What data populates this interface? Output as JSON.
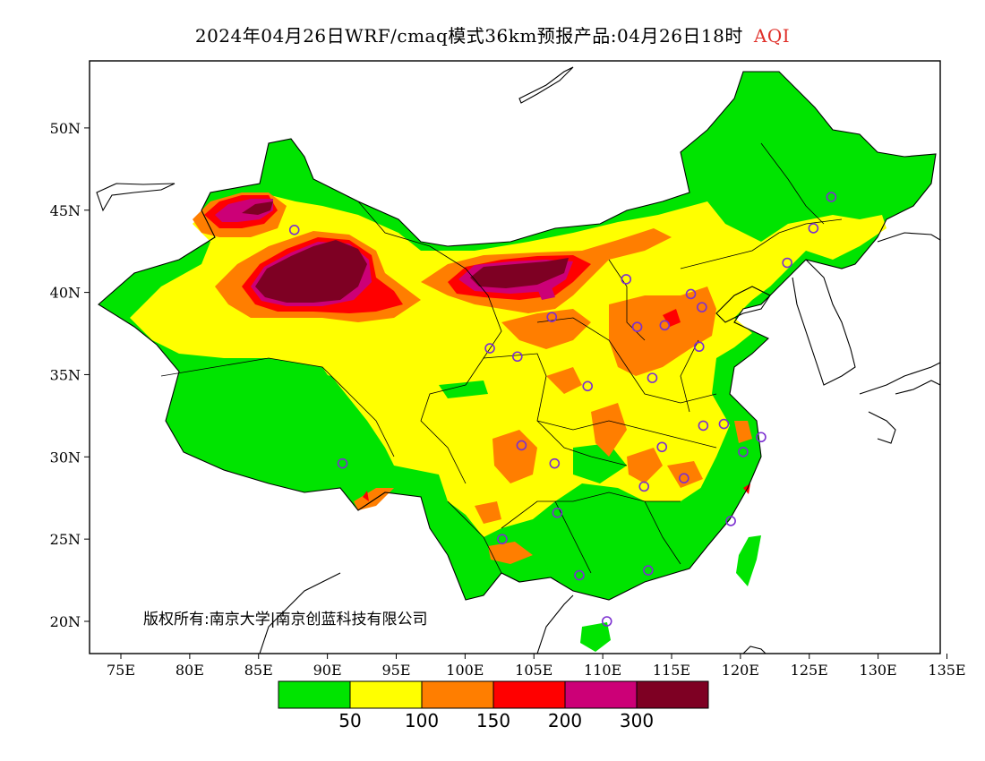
{
  "title": {
    "main": "2024年04月26日WRF/cmaq模式36km预报产品:04月26日18时",
    "variable": "AQI",
    "variable_color": "#e0302a"
  },
  "axes": {
    "lat_labels": [
      "20N",
      "25N",
      "30N",
      "35N",
      "40N",
      "45N",
      "50N"
    ],
    "lon_labels": [
      "75E",
      "80E",
      "85E",
      "90E",
      "95E",
      "100E",
      "105E",
      "110E",
      "115E",
      "120E",
      "125E",
      "130E",
      "135E"
    ]
  },
  "copyright": "版权所有:南京大学|南京创蓝科技有限公司",
  "legend": {
    "colors": [
      "#00e400",
      "#ffff00",
      "#ff7e00",
      "#ff0000",
      "#cc0077",
      "#7e0023"
    ],
    "ticks": [
      "50",
      "100",
      "150",
      "200",
      "300"
    ]
  },
  "colors": {
    "green": "#00e400",
    "yellow": "#ffff00",
    "orange": "#ff7e00",
    "red": "#ff0000",
    "magenta": "#cc0077",
    "maroon": "#7e0023",
    "station": "#7b2fd0"
  },
  "stations": [
    [
      87.6,
      43.8
    ],
    [
      126.6,
      45.8
    ],
    [
      125.3,
      43.9
    ],
    [
      123.4,
      41.8
    ],
    [
      116.4,
      39.9
    ],
    [
      117.2,
      39.1
    ],
    [
      114.5,
      38.0
    ],
    [
      112.5,
      37.9
    ],
    [
      111.7,
      40.8
    ],
    [
      106.3,
      38.5
    ],
    [
      103.8,
      36.1
    ],
    [
      101.8,
      36.6
    ],
    [
      108.9,
      34.3
    ],
    [
      113.6,
      34.8
    ],
    [
      117.0,
      36.7
    ],
    [
      118.8,
      32.0
    ],
    [
      117.3,
      31.9
    ],
    [
      120.2,
      30.3
    ],
    [
      121.5,
      31.2
    ],
    [
      114.3,
      30.6
    ],
    [
      115.9,
      28.7
    ],
    [
      113.0,
      28.2
    ],
    [
      106.5,
      29.6
    ],
    [
      104.1,
      30.7
    ],
    [
      106.7,
      26.6
    ],
    [
      102.7,
      25.0
    ],
    [
      108.3,
      22.8
    ],
    [
      113.3,
      23.1
    ],
    [
      119.3,
      26.1
    ],
    [
      110.3,
      20.0
    ],
    [
      91.1,
      29.6
    ]
  ]
}
